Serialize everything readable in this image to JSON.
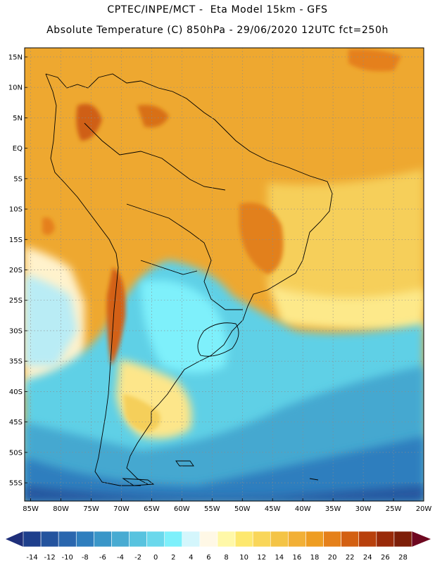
{
  "titles": {
    "line1": "CPTEC/INPE/MCT -  Eta Model 15km - GFS",
    "line2": "Absolute Temperature (C) 850hPa - 29/06/2020 12UTC fct=250h"
  },
  "map": {
    "lat_labels": [
      "15N",
      "10N",
      "5N",
      "EQ",
      "5S",
      "10S",
      "15S",
      "20S",
      "25S",
      "30S",
      "35S",
      "40S",
      "45S",
      "50S",
      "55S"
    ],
    "lon_labels": [
      "85W",
      "80W",
      "75W",
      "70W",
      "65W",
      "60W",
      "55W",
      "50W",
      "45W",
      "40W",
      "35W",
      "30W",
      "25W",
      "20W"
    ],
    "lat_values": [
      15,
      10,
      5,
      0,
      -5,
      -10,
      -15,
      -20,
      -25,
      -30,
      -35,
      -40,
      -45,
      -50,
      -55
    ],
    "lon_values": [
      -85,
      -80,
      -75,
      -70,
      -65,
      -60,
      -55,
      -50,
      -45,
      -40,
      -35,
      -30,
      -25,
      -20
    ],
    "lat_range": [
      -58,
      16.5
    ],
    "lon_range": [
      -86,
      -20
    ],
    "gridlines": "dotted"
  },
  "colorbar": {
    "labels": [
      "-14",
      "-12",
      "-10",
      "-8",
      "-6",
      "-4",
      "-2",
      "0",
      "2",
      "4",
      "6",
      "8",
      "10",
      "12",
      "14",
      "16",
      "18",
      "20",
      "22",
      "24",
      "26",
      "28"
    ],
    "colors": [
      "#1e3f8c",
      "#24539e",
      "#2a66ae",
      "#2f7ebe",
      "#3a96c8",
      "#48abd2",
      "#58c3df",
      "#6ad8ec",
      "#7df0fb",
      "#d4f6fc",
      "#fff8e6",
      "#fff8a8",
      "#fde86e",
      "#f9d659",
      "#f4c446",
      "#f2b036",
      "#ee9d22",
      "#e5801a",
      "#d36012",
      "#b8400c",
      "#992a09",
      "#7d1e08"
    ],
    "extend_low_color": "#1f2f7a",
    "extend_high_color": "#6e0820"
  }
}
